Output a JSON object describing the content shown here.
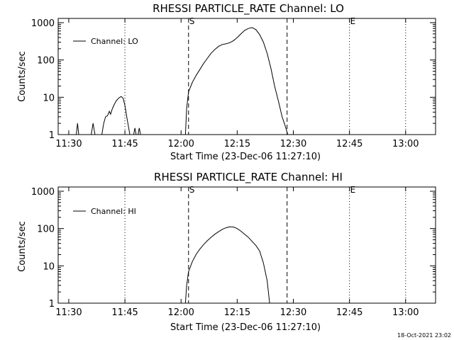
{
  "footer": {
    "stamp": "18-Oct-2021 23:02"
  },
  "chart_data": [
    {
      "type": "line",
      "title": "RHESSI PARTICLE_RATE Channel: LO",
      "xlabel": "Start Time (23-Dec-06 11:27:10)",
      "ylabel": "Counts/sec",
      "yscale": "log",
      "ylim": [
        1,
        1000
      ],
      "xlim": [
        "11:27:10",
        "13:08:00"
      ],
      "x_ticks": [
        "11:30",
        "11:45",
        "12:00",
        "12:15",
        "12:30",
        "12:45",
        "13:00"
      ],
      "y_ticks": [
        "1",
        "10",
        "100",
        "1000"
      ],
      "legend": {
        "position": "top-left"
      },
      "markers": [
        {
          "time": "12:02:00",
          "style": "dashed",
          "label": "S"
        },
        {
          "time": "12:28:20",
          "style": "dashed",
          "label": ""
        },
        {
          "time": "11:45:00",
          "style": "dotted",
          "label": ""
        },
        {
          "time": "12:45:00",
          "style": "dotted",
          "label": "E"
        },
        {
          "time": "13:00:00",
          "style": "dotted",
          "label": ""
        }
      ],
      "series": [
        {
          "name": "Channel: LO",
          "segments": [
            [
              [
                "11:32:00",
                1.0
              ],
              [
                "11:32:20",
                2.0
              ],
              [
                "11:32:40",
                1.0
              ]
            ],
            [
              [
                "11:36:00",
                1.0
              ],
              [
                "11:36:30",
                2.0
              ],
              [
                "11:37:00",
                1.0
              ]
            ],
            [
              [
                "11:38:50",
                1.0
              ],
              [
                "11:39:20",
                2.0
              ],
              [
                "11:39:50",
                3.0
              ],
              [
                "11:40:20",
                3.2
              ],
              [
                "11:40:50",
                4.2
              ],
              [
                "11:41:10",
                3.5
              ],
              [
                "11:41:30",
                4.5
              ],
              [
                "11:42:00",
                6.0
              ],
              [
                "11:42:40",
                8.0
              ],
              [
                "11:43:20",
                9.5
              ],
              [
                "11:44:00",
                10.5
              ],
              [
                "11:44:30",
                9.5
              ],
              [
                "11:45:00",
                6.0
              ],
              [
                "11:45:30",
                3.0
              ],
              [
                "11:46:00",
                1.5
              ],
              [
                "11:46:20",
                1.0
              ]
            ],
            [
              [
                "11:47:20",
                1.0
              ],
              [
                "11:47:40",
                1.5
              ],
              [
                "11:48:00",
                1.0
              ]
            ],
            [
              [
                "11:48:30",
                1.0
              ],
              [
                "11:48:50",
                1.5
              ],
              [
                "11:49:10",
                1.0
              ]
            ],
            [
              [
                "12:01:10",
                1.0
              ],
              [
                "12:01:30",
                5.0
              ],
              [
                "12:02:00",
                14.0
              ],
              [
                "12:03:00",
                25.0
              ],
              [
                "12:04:00",
                38.0
              ],
              [
                "12:05:00",
                55.0
              ],
              [
                "12:06:00",
                80.0
              ],
              [
                "12:07:00",
                110.0
              ],
              [
                "12:08:00",
                150.0
              ],
              [
                "12:09:00",
                190.0
              ],
              [
                "12:10:00",
                230.0
              ],
              [
                "12:11:00",
                260.0
              ],
              [
                "12:12:00",
                270.0
              ],
              [
                "12:13:00",
                290.0
              ],
              [
                "12:14:00",
                330.0
              ],
              [
                "12:15:00",
                400.0
              ],
              [
                "12:16:00",
                500.0
              ],
              [
                "12:17:00",
                620.0
              ],
              [
                "12:18:00",
                700.0
              ],
              [
                "12:19:00",
                740.0
              ],
              [
                "12:20:00",
                650.0
              ],
              [
                "12:21:00",
                480.0
              ],
              [
                "12:22:00",
                300.0
              ],
              [
                "12:23:00",
                150.0
              ],
              [
                "12:24:00",
                60.0
              ],
              [
                "12:25:00",
                20.0
              ],
              [
                "12:26:00",
                8.0
              ],
              [
                "12:27:00",
                3.0
              ],
              [
                "12:28:00",
                1.5
              ],
              [
                "12:28:30",
                1.0
              ]
            ]
          ]
        }
      ]
    },
    {
      "type": "line",
      "title": "RHESSI PARTICLE_RATE Channel: HI",
      "xlabel": "Start Time (23-Dec-06 11:27:10)",
      "ylabel": "Counts/sec",
      "yscale": "log",
      "ylim": [
        1,
        1000
      ],
      "xlim": [
        "11:27:10",
        "13:08:00"
      ],
      "x_ticks": [
        "11:30",
        "11:45",
        "12:00",
        "12:15",
        "12:30",
        "12:45",
        "13:00"
      ],
      "y_ticks": [
        "1",
        "10",
        "100",
        "1000"
      ],
      "legend": {
        "position": "top-left"
      },
      "markers": [
        {
          "time": "12:02:00",
          "style": "dashed",
          "label": "S"
        },
        {
          "time": "12:28:20",
          "style": "dashed",
          "label": ""
        },
        {
          "time": "11:45:00",
          "style": "dotted",
          "label": ""
        },
        {
          "time": "12:45:00",
          "style": "dotted",
          "label": "E"
        },
        {
          "time": "13:00:00",
          "style": "dotted",
          "label": ""
        }
      ],
      "series": [
        {
          "name": "Channel: HI",
          "segments": [
            [
              [
                "12:01:10",
                1.0
              ],
              [
                "12:01:30",
                3.0
              ],
              [
                "12:02:00",
                7.0
              ],
              [
                "12:03:00",
                13.0
              ],
              [
                "12:04:00",
                20.0
              ],
              [
                "12:05:00",
                28.0
              ],
              [
                "12:06:00",
                37.0
              ],
              [
                "12:07:00",
                47.0
              ],
              [
                "12:08:00",
                58.0
              ],
              [
                "12:09:00",
                70.0
              ],
              [
                "12:10:00",
                82.0
              ],
              [
                "12:11:00",
                95.0
              ],
              [
                "12:12:00",
                105.0
              ],
              [
                "12:13:00",
                112.0
              ],
              [
                "12:14:00",
                110.0
              ],
              [
                "12:15:00",
                100.0
              ],
              [
                "12:16:00",
                85.0
              ],
              [
                "12:17:00",
                70.0
              ],
              [
                "12:18:00",
                58.0
              ],
              [
                "12:19:00",
                45.0
              ],
              [
                "12:20:00",
                35.0
              ],
              [
                "12:21:00",
                25.0
              ],
              [
                "12:22:00",
                12.0
              ],
              [
                "12:23:00",
                4.0
              ],
              [
                "12:23:40",
                1.0
              ]
            ]
          ]
        }
      ]
    }
  ]
}
